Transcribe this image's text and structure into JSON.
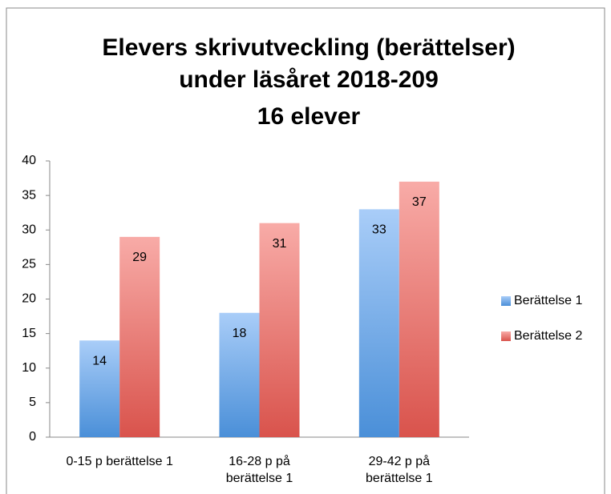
{
  "chart_data": {
    "type": "bar",
    "title": "Elevers skrivutveckling (berättelser) under läsåret 2018-209",
    "subtitle": "16 elever",
    "categories": [
      "0-15 p berättelse 1",
      "16-28 p på berättelse 1",
      "29-42 p på berättelse 1"
    ],
    "series": [
      {
        "name": "Berättelse 1",
        "color": "#4a8fd8",
        "values": [
          14,
          18,
          33
        ]
      },
      {
        "name": "Berättelse 2",
        "color": "#d9534c",
        "values": [
          29,
          31,
          37
        ]
      }
    ],
    "ylim": [
      0,
      40
    ],
    "yticks": [
      0,
      5,
      10,
      15,
      20,
      25,
      30,
      35,
      40
    ],
    "legend": "right",
    "grid": false
  }
}
